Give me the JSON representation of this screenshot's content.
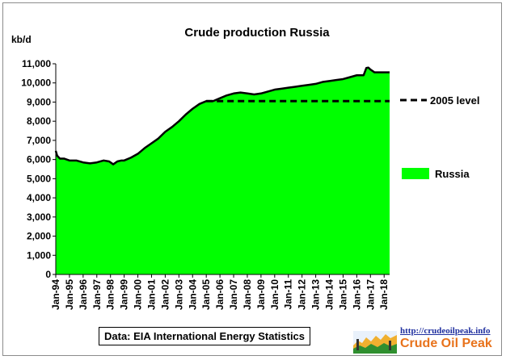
{
  "chart_data": {
    "type": "area",
    "title": "Crude  production Russia",
    "ylabel": "kb/d",
    "xlabel": "",
    "ylim": [
      0,
      11000
    ],
    "yticks": [
      "0",
      "1,000",
      "2,000",
      "3,000",
      "4,000",
      "5,000",
      "6,000",
      "7,000",
      "8,000",
      "9,000",
      "10,000",
      "11,000"
    ],
    "categories": [
      "Jan-94",
      "Jan-95",
      "Jan-96",
      "Jan-97",
      "Jan-98",
      "Jan-99",
      "Jan-00",
      "Jan-01",
      "Jan-02",
      "Jan-03",
      "Jan-04",
      "Jan-05",
      "Jan-06",
      "Jan-07",
      "Jan-08",
      "Jan-09",
      "Jan-10",
      "Jan-11",
      "Jan-12",
      "Jan-13",
      "Jan-14",
      "Jan-15",
      "Jan-16",
      "Jan-17",
      "Jan-18"
    ],
    "x_start_year": 1994,
    "x_end_year": 2018.4,
    "series": [
      {
        "name": "Russia",
        "color": "#00ff00",
        "x": [
          1994.0,
          1994.1,
          1994.3,
          1994.6,
          1995.0,
          1995.5,
          1996.0,
          1996.5,
          1997.0,
          1997.5,
          1997.9,
          1998.2,
          1998.5,
          1998.8,
          1999.0,
          1999.5,
          2000.0,
          2000.5,
          2001.0,
          2001.5,
          2002.0,
          2002.5,
          2003.0,
          2003.5,
          2004.0,
          2004.5,
          2005.0,
          2005.5,
          2006.0,
          2006.5,
          2007.0,
          2007.5,
          2008.0,
          2008.5,
          2009.0,
          2009.5,
          2010.0,
          2010.5,
          2011.0,
          2011.5,
          2012.0,
          2012.5,
          2013.0,
          2013.5,
          2014.0,
          2014.5,
          2015.0,
          2015.5,
          2016.0,
          2016.5,
          2016.7,
          2016.85,
          2017.0,
          2017.3,
          2017.6,
          2018.0,
          2018.4
        ],
        "values": [
          6450,
          6200,
          6050,
          6050,
          5950,
          5950,
          5850,
          5800,
          5850,
          5950,
          5900,
          5750,
          5900,
          5950,
          5950,
          6100,
          6300,
          6600,
          6850,
          7100,
          7450,
          7700,
          8000,
          8350,
          8650,
          8900,
          9050,
          9050,
          9200,
          9350,
          9450,
          9500,
          9450,
          9400,
          9450,
          9550,
          9650,
          9700,
          9750,
          9800,
          9850,
          9900,
          9950,
          10050,
          10100,
          10150,
          10200,
          10300,
          10400,
          10400,
          10780,
          10800,
          10700,
          10550,
          10550,
          10550,
          10550
        ]
      },
      {
        "name": "2005 level",
        "value": 9050,
        "x_from": 2005.0,
        "x_to": 2018.4,
        "style": "dashed",
        "color": "#000000"
      }
    ],
    "grid": false,
    "legend": [
      {
        "label": "2005 level",
        "marker": "dashed-line",
        "position": "right"
      },
      {
        "label": "Russia",
        "marker": "green-box",
        "position": "right"
      }
    ]
  },
  "source_note": "Data: EIA International Energy Statistics",
  "logo": {
    "url": "http://crudeoilpeak.info",
    "name": "Crude Oil Peak"
  },
  "colors": {
    "area": "#00ff00",
    "outline": "#000000",
    "logo_text": "#e8731c",
    "logo_url": "#1f2f9f"
  }
}
